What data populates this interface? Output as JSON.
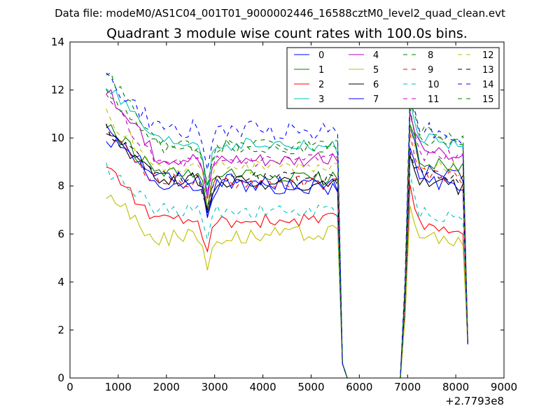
{
  "chart_data": {
    "type": "line",
    "suptitle": "Data file: modeM0/AS1C04_001T01_9000002446_16588cztM0_level2_quad_clean.evt",
    "title": "Quadrant 3 module wise count rates with 100.0s bins.",
    "xlabel": "",
    "ylabel": "",
    "x_offset_label": "+2.7793e8",
    "xlim": [
      0,
      9000
    ],
    "ylim": [
      0,
      14
    ],
    "x_ticks": [
      0,
      1000,
      2000,
      3000,
      4000,
      5000,
      6000,
      7000,
      8000,
      9000
    ],
    "y_ticks": [
      0,
      2,
      4,
      6,
      8,
      10,
      12,
      14
    ],
    "x_tick_labels": [
      "0",
      "1000",
      "2000",
      "3000",
      "4000",
      "5000",
      "6000",
      "7000",
      "8000",
      "9000"
    ],
    "y_tick_labels": [
      "0",
      "2",
      "4",
      "6",
      "8",
      "10",
      "12",
      "14"
    ],
    "legend_position": "top-right",
    "segments": [
      {
        "start": 750,
        "end": 5550,
        "step": 100
      },
      {
        "start": 5650,
        "end": 6850,
        "step": 100
      },
      {
        "start": 6950,
        "end": 8250,
        "step": 100
      }
    ],
    "series": [
      {
        "name": "0",
        "color": "#0000ff",
        "dash": "solid",
        "start": 10.6,
        "s1_mid": 8.4,
        "dip": 6.9,
        "s1_end": 8.0,
        "peak": 10.6,
        "s2_mid": 8.7,
        "end": 8.3,
        "noise": 0.3
      },
      {
        "name": "1",
        "color": "#008000",
        "dash": "solid",
        "start": 10.5,
        "s1_mid": 8.5,
        "dip": 7.0,
        "s1_end": 8.3,
        "peak": 10.8,
        "s2_mid": 9.1,
        "end": 8.8,
        "noise": 0.3
      },
      {
        "name": "2",
        "color": "#ff0000",
        "dash": "solid",
        "start": 8.9,
        "s1_mid": 6.5,
        "dip": 5.0,
        "s1_end": 6.6,
        "peak": 7.8,
        "s2_mid": 6.4,
        "end": 6.2,
        "noise": 0.3
      },
      {
        "name": "3",
        "color": "#00bfbf",
        "dash": "solid",
        "start": 12.2,
        "s1_mid": 9.8,
        "dip": 7.7,
        "s1_end": 9.6,
        "peak": 11.4,
        "s2_mid": 10.0,
        "end": 9.6,
        "noise": 0.3
      },
      {
        "name": "4",
        "color": "#bf00bf",
        "dash": "solid",
        "start": 12.0,
        "s1_mid": 9.2,
        "dip": 7.3,
        "s1_end": 9.1,
        "peak": 11.0,
        "s2_mid": 9.7,
        "end": 9.0,
        "noise": 0.3
      },
      {
        "name": "5",
        "color": "#bfbf00",
        "dash": "solid",
        "start": 7.7,
        "s1_mid": 5.8,
        "dip": 4.7,
        "s1_end": 6.1,
        "peak": 7.2,
        "s2_mid": 5.9,
        "end": 5.6,
        "noise": 0.35
      },
      {
        "name": "6",
        "color": "#000000",
        "dash": "solid",
        "start": 10.4,
        "s1_mid": 8.3,
        "dip": 6.8,
        "s1_end": 8.0,
        "peak": 9.4,
        "s2_mid": 8.4,
        "end": 7.9,
        "noise": 0.3
      },
      {
        "name": "7",
        "color": "#0000ff",
        "dash": "solid",
        "start": 10.1,
        "s1_mid": 8.1,
        "dip": 7.0,
        "s1_end": 7.9,
        "peak": 9.8,
        "s2_mid": 8.3,
        "end": 8.0,
        "noise": 0.3
      },
      {
        "name": "8",
        "color": "#008000",
        "dash": "dashed",
        "start": 12.9,
        "s1_mid": 9.8,
        "dip": 8.0,
        "s1_end": 9.5,
        "peak": 11.8,
        "s2_mid": 10.4,
        "end": 10.0,
        "noise": 0.3
      },
      {
        "name": "9",
        "color": "#ff0000",
        "dash": "dashed",
        "start": 10.3,
        "s1_mid": 8.2,
        "dip": 6.9,
        "s1_end": 8.1,
        "peak": 10.0,
        "s2_mid": 8.6,
        "end": 8.3,
        "noise": 0.3
      },
      {
        "name": "10",
        "color": "#00bfbf",
        "dash": "dashed",
        "start": 8.7,
        "s1_mid": 7.0,
        "dip": 5.9,
        "s1_end": 6.9,
        "peak": 8.4,
        "s2_mid": 6.9,
        "end": 6.6,
        "noise": 0.3
      },
      {
        "name": "11",
        "color": "#bf00bf",
        "dash": "dashed",
        "start": 11.6,
        "s1_mid": 9.0,
        "dip": 7.6,
        "s1_end": 9.2,
        "peak": 11.0,
        "s2_mid": 9.4,
        "end": 9.1,
        "noise": 0.3
      },
      {
        "name": "12",
        "color": "#bfbf00",
        "dash": "dashed",
        "start": 11.0,
        "s1_mid": 8.8,
        "dip": 7.4,
        "s1_end": 8.8,
        "peak": 10.5,
        "s2_mid": 9.0,
        "end": 8.7,
        "noise": 0.3
      },
      {
        "name": "13",
        "color": "#000000",
        "dash": "dashed",
        "start": 10.4,
        "s1_mid": 8.4,
        "dip": 7.0,
        "s1_end": 8.3,
        "peak": 9.6,
        "s2_mid": 8.7,
        "end": 8.3,
        "noise": 0.3
      },
      {
        "name": "14",
        "color": "#0000ff",
        "dash": "dashed",
        "start": 12.5,
        "s1_mid": 10.4,
        "dip": 8.3,
        "s1_end": 10.3,
        "peak": 12.1,
        "s2_mid": 10.5,
        "end": 10.0,
        "noise": 0.4
      },
      {
        "name": "15",
        "color": "#008000",
        "dash": "dashed",
        "start": 11.9,
        "s1_mid": 9.6,
        "dip": 8.1,
        "s1_end": 9.8,
        "peak": 11.0,
        "s2_mid": 9.9,
        "end": 9.7,
        "noise": 0.3
      }
    ]
  }
}
